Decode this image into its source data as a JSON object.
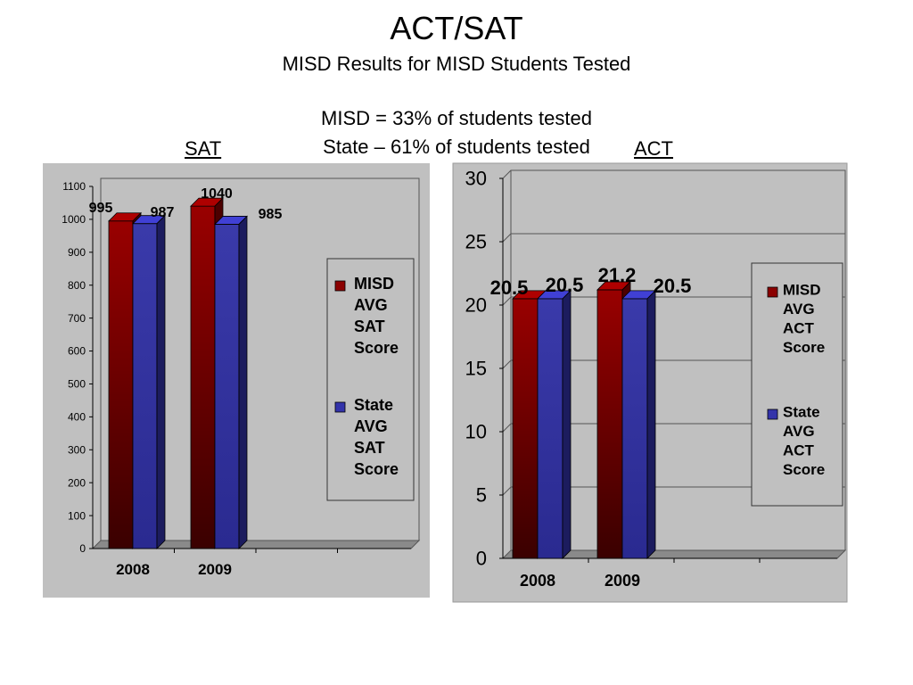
{
  "title": "ACT/SAT",
  "subtitle": "MISD Results for MISD Students Tested",
  "notes": [
    "MISD = 33% of students tested",
    "State – 61% of students tested"
  ],
  "sections": {
    "sat": "SAT",
    "act": "ACT"
  },
  "colors": {
    "misd": "#8b0000",
    "state": "#3333aa",
    "panel": "#c0c0c0"
  },
  "chart_data": [
    {
      "type": "bar",
      "title": "",
      "categories": [
        "2008",
        "2009"
      ],
      "series": [
        {
          "name": "MISD AVG SAT Score",
          "values": [
            995,
            1040
          ]
        },
        {
          "name": "State AVG SAT Score",
          "values": [
            987,
            985
          ]
        }
      ],
      "ylim": [
        0,
        1100
      ],
      "yticks": [
        0,
        100,
        200,
        300,
        400,
        500,
        600,
        700,
        800,
        900,
        1000,
        1100
      ],
      "grid": false,
      "legend": "right"
    },
    {
      "type": "bar",
      "title": "",
      "categories": [
        "2008",
        "2009"
      ],
      "series": [
        {
          "name": "MISD AVG ACT Score",
          "values": [
            20.5,
            21.2
          ]
        },
        {
          "name": "State AVG ACT Score",
          "values": [
            20.5,
            20.5
          ]
        }
      ],
      "ylim": [
        0,
        30
      ],
      "yticks": [
        0,
        5,
        10,
        15,
        20,
        25,
        30
      ],
      "grid": true,
      "legend": "right"
    }
  ]
}
